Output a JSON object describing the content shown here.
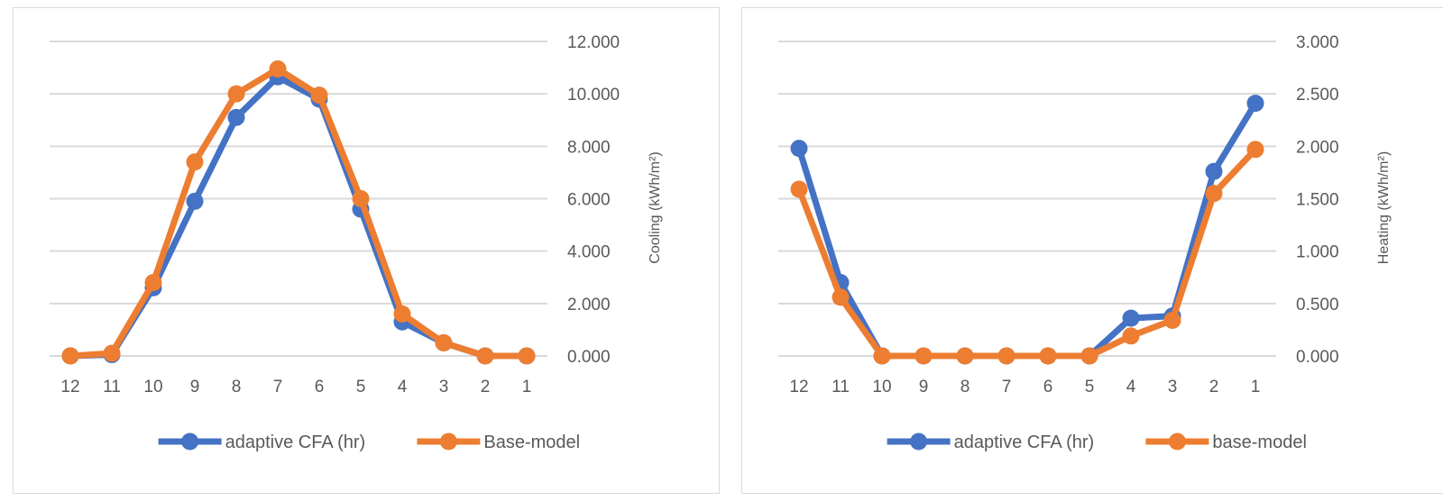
{
  "chart_data": [
    {
      "type": "line",
      "categories": [
        "12",
        "11",
        "10",
        "9",
        "8",
        "7",
        "6",
        "5",
        "4",
        "3",
        "2",
        "1"
      ],
      "series": [
        {
          "name": "adaptive CFA (hr)",
          "color": "#4472C4",
          "values": [
            0.0,
            0.05,
            2.6,
            5.9,
            9.1,
            10.65,
            9.8,
            5.6,
            1.3,
            0.5,
            0.0,
            0.0
          ]
        },
        {
          "name": "Base-model",
          "color": "#ED7D31",
          "values": [
            0.0,
            0.1,
            2.8,
            7.4,
            10.0,
            10.95,
            9.95,
            6.0,
            1.6,
            0.5,
            0.0,
            0.0
          ]
        }
      ],
      "ylabel": "Cooling (kWh/m²)",
      "ylim": [
        0,
        12
      ],
      "yticks": [
        "0.000",
        "2.000",
        "4.000",
        "6.000",
        "8.000",
        "10.000",
        "12.000"
      ],
      "yaxis_position": "right",
      "grid": true,
      "legend": "bottom"
    },
    {
      "type": "line",
      "categories": [
        "12",
        "11",
        "10",
        "9",
        "8",
        "7",
        "6",
        "5",
        "4",
        "3",
        "2",
        "1"
      ],
      "series": [
        {
          "name": "adaptive CFA (hr)",
          "color": "#4472C4",
          "values": [
            1.98,
            0.7,
            0.0,
            0.0,
            0.0,
            0.0,
            0.0,
            0.0,
            0.36,
            0.38,
            1.76,
            2.41
          ]
        },
        {
          "name": "base-model",
          "color": "#ED7D31",
          "values": [
            1.59,
            0.56,
            0.0,
            0.0,
            0.0,
            0.0,
            0.0,
            0.0,
            0.19,
            0.34,
            1.55,
            1.97
          ]
        }
      ],
      "ylabel": "Heating (kWh/m²)",
      "ylim": [
        0,
        3
      ],
      "yticks": [
        "0.000",
        "0.500",
        "1.000",
        "1.500",
        "2.000",
        "2.500",
        "3.000"
      ],
      "yaxis_position": "right",
      "grid": true,
      "legend": "bottom"
    }
  ]
}
